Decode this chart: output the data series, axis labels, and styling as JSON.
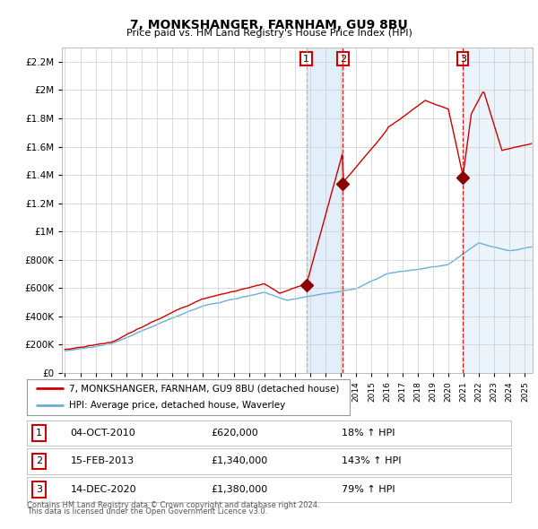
{
  "title": "7, MONKSHANGER, FARNHAM, GU9 8BU",
  "subtitle": "Price paid vs. HM Land Registry's House Price Index (HPI)",
  "legend_line1": "7, MONKSHANGER, FARNHAM, GU9 8BU (detached house)",
  "legend_line2": "HPI: Average price, detached house, Waverley",
  "footer1": "Contains HM Land Registry data © Crown copyright and database right 2024.",
  "footer2": "This data is licensed under the Open Government Licence v3.0.",
  "sales": [
    {
      "label": "1",
      "date": "04-OCT-2010",
      "price": "£620,000",
      "hpi": "18% ↑ HPI",
      "year": 2010.75
    },
    {
      "label": "2",
      "date": "15-FEB-2013",
      "price": "£1,340,000",
      "hpi": "143% ↑ HPI",
      "year": 2013.12
    },
    {
      "label": "3",
      "date": "14-DEC-2020",
      "price": "£1,380,000",
      "hpi": "79% ↑ HPI",
      "year": 2020.95
    }
  ],
  "sale_values": [
    620000,
    1340000,
    1380000
  ],
  "hpi_color": "#6baed6",
  "price_color": "#cc0000",
  "sale_marker_color": "#8b0000",
  "vline1_color": "#aaaaaa",
  "vline2_color": "#cc0000",
  "vline3_color": "#cc0000",
  "shade_color": "#d0e4f5",
  "background_color": "#ffffff",
  "grid_color": "#cccccc",
  "ylim": [
    0,
    2300000
  ],
  "xlim_start": 1994.8,
  "xlim_end": 2025.5,
  "figsize": [
    6.0,
    5.9
  ],
  "dpi": 100
}
